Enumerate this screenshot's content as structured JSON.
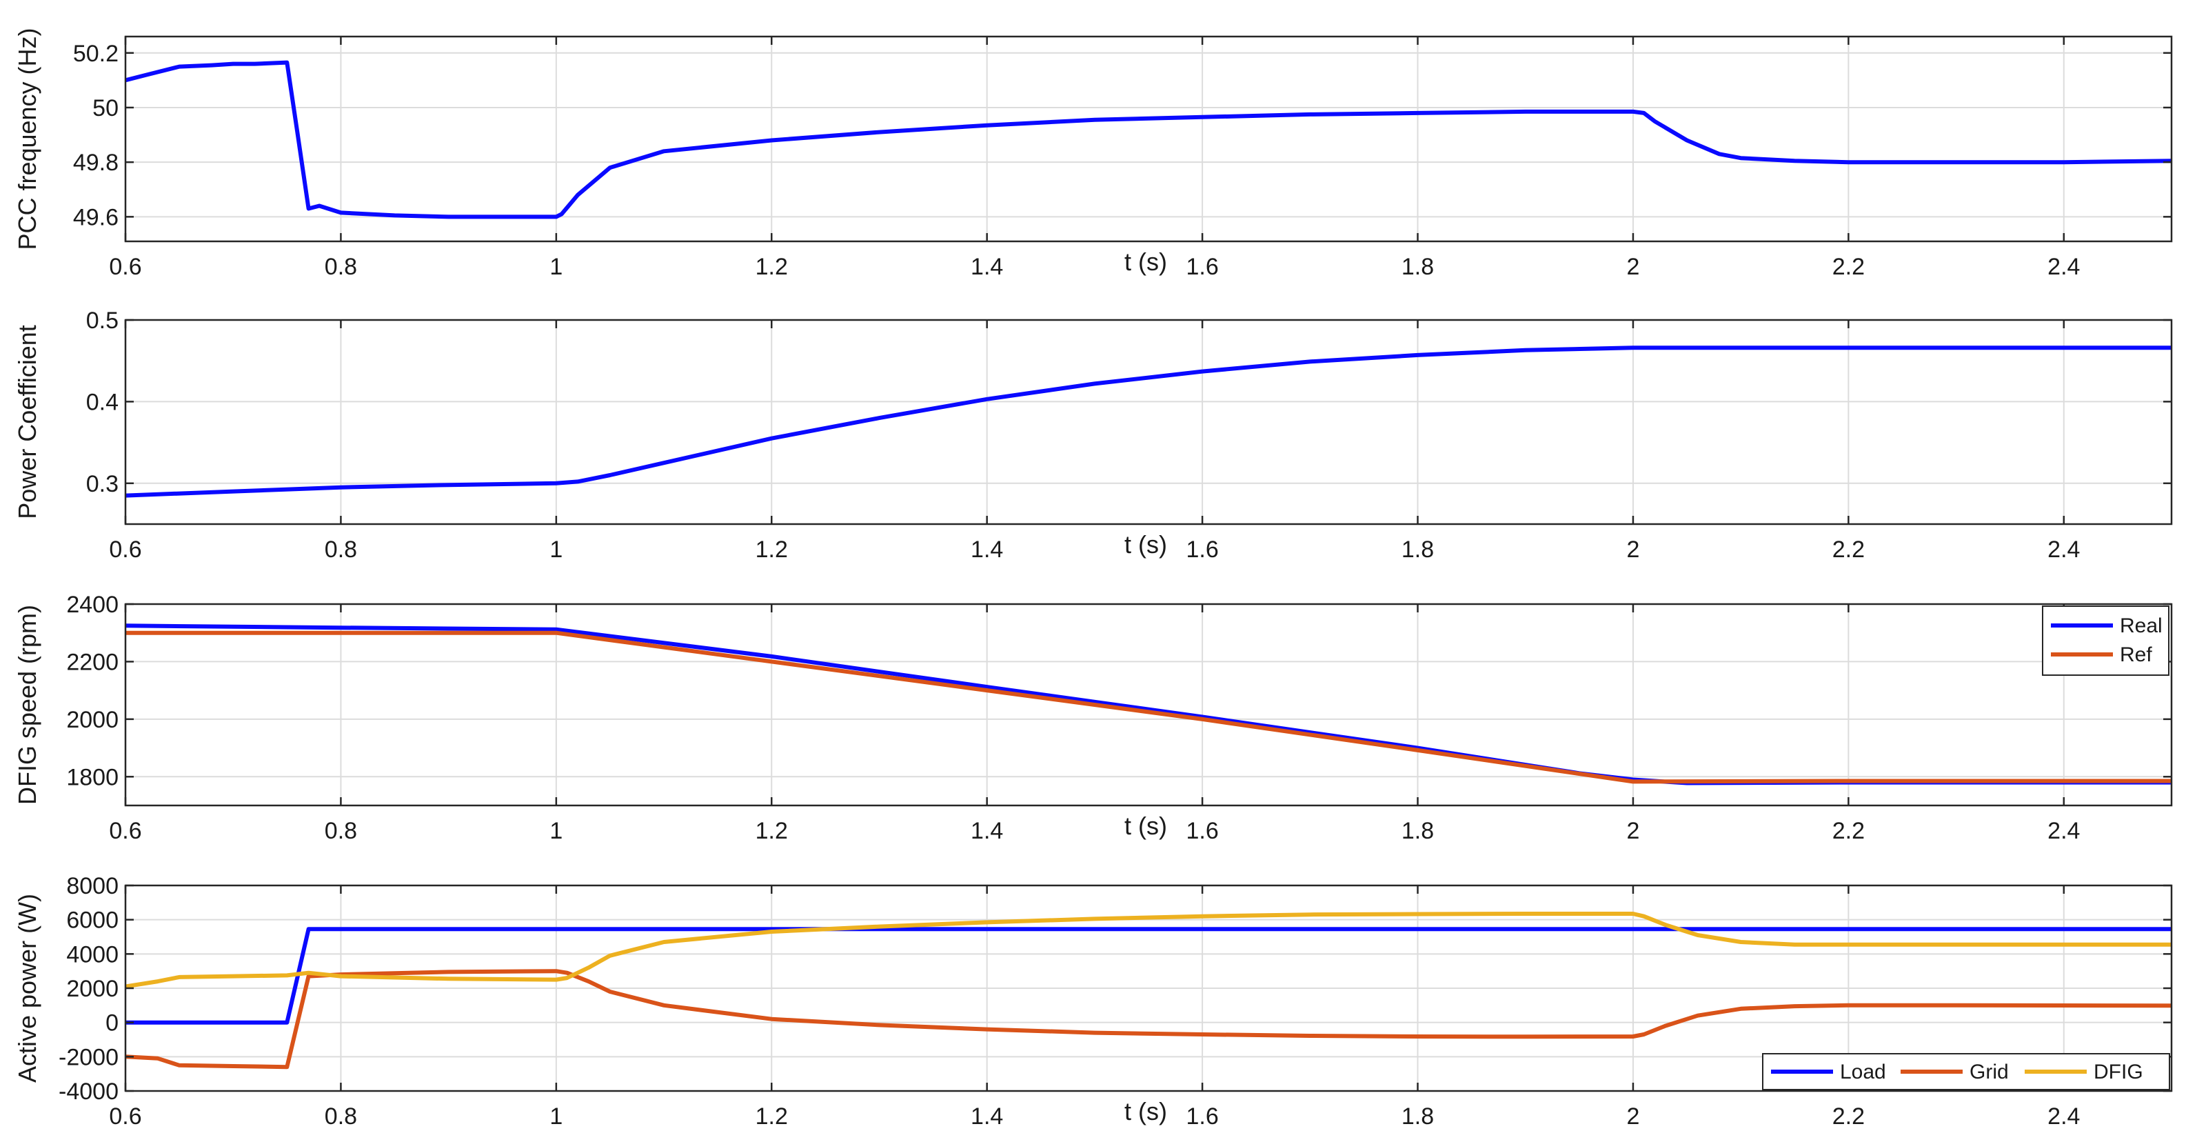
{
  "chart_data": [
    {
      "type": "line",
      "ylabel": "PCC frequency (Hz)",
      "xlabel": "t (s)",
      "xlim": [
        0.6,
        2.5
      ],
      "ylim": [
        49.51,
        50.26
      ],
      "xticks": [
        0.6,
        0.8,
        1,
        1.2,
        1.4,
        1.6,
        1.8,
        2,
        2.2,
        2.4
      ],
      "yticks": [
        49.6,
        49.8,
        50,
        50.2
      ],
      "grid": true,
      "legend": null,
      "series": [
        {
          "color": "#0a0aff",
          "x": [
            0.6,
            0.62,
            0.65,
            0.68,
            0.7,
            0.72,
            0.75,
            0.76,
            0.77,
            0.78,
            0.8,
            0.85,
            0.9,
            0.95,
            1.0,
            1.005,
            1.02,
            1.05,
            1.1,
            1.2,
            1.3,
            1.4,
            1.5,
            1.6,
            1.7,
            1.8,
            1.9,
            2.0,
            2.01,
            2.02,
            2.05,
            2.08,
            2.1,
            2.15,
            2.2,
            2.3,
            2.4,
            2.5
          ],
          "y": [
            50.1,
            50.12,
            50.15,
            50.155,
            50.16,
            50.16,
            50.165,
            49.9,
            49.63,
            49.64,
            49.615,
            49.605,
            49.6,
            49.6,
            49.6,
            49.61,
            49.68,
            49.78,
            49.84,
            49.88,
            49.91,
            49.935,
            49.955,
            49.965,
            49.975,
            49.98,
            49.985,
            49.985,
            49.98,
            49.95,
            49.88,
            49.83,
            49.815,
            49.805,
            49.8,
            49.8,
            49.8,
            49.805
          ]
        }
      ]
    },
    {
      "type": "line",
      "ylabel": "Power Coefficient",
      "xlabel": "t (s)",
      "xlim": [
        0.6,
        2.5
      ],
      "ylim": [
        0.25,
        0.5
      ],
      "xticks": [
        0.6,
        0.8,
        1,
        1.2,
        1.4,
        1.6,
        1.8,
        2,
        2.2,
        2.4
      ],
      "yticks": [
        0.3,
        0.4,
        0.5
      ],
      "grid": true,
      "legend": null,
      "series": [
        {
          "color": "#0a0aff",
          "x": [
            0.6,
            0.7,
            0.8,
            0.9,
            1.0,
            1.02,
            1.05,
            1.1,
            1.2,
            1.3,
            1.4,
            1.5,
            1.6,
            1.7,
            1.8,
            1.9,
            2.0,
            2.1,
            2.2,
            2.3,
            2.4,
            2.5
          ],
          "y": [
            0.285,
            0.29,
            0.295,
            0.298,
            0.3,
            0.302,
            0.31,
            0.325,
            0.355,
            0.38,
            0.403,
            0.422,
            0.437,
            0.449,
            0.457,
            0.463,
            0.466,
            0.466,
            0.466,
            0.466,
            0.466,
            0.466
          ]
        }
      ]
    },
    {
      "type": "line",
      "ylabel": "DFIG speed (rpm)",
      "xlabel": "t (s)",
      "xlim": [
        0.6,
        2.5
      ],
      "ylim": [
        1700,
        2400
      ],
      "xticks": [
        0.6,
        0.8,
        1,
        1.2,
        1.4,
        1.6,
        1.8,
        2,
        2.2,
        2.4
      ],
      "yticks": [
        1800,
        2000,
        2200,
        2400
      ],
      "grid": true,
      "legend": "top-right",
      "series": [
        {
          "name": "Real",
          "color": "#0a0aff",
          "x": [
            0.6,
            0.8,
            1.0,
            1.2,
            1.4,
            1.6,
            1.8,
            1.95,
            2.0,
            2.05,
            2.2,
            2.5
          ],
          "y": [
            2325,
            2318,
            2312,
            2218,
            2112,
            2008,
            1900,
            1812,
            1790,
            1778,
            1780,
            1780
          ]
        },
        {
          "name": "Ref",
          "color": "#d95319",
          "x": [
            0.6,
            0.8,
            1.0,
            1.2,
            1.4,
            1.6,
            1.8,
            2.0,
            2.2,
            2.5
          ],
          "y": [
            2300,
            2300,
            2300,
            2200,
            2100,
            2000,
            1892,
            1783,
            1785,
            1785
          ]
        }
      ]
    },
    {
      "type": "line",
      "ylabel": "Active power (W)",
      "xlabel": "t (s)",
      "xlim": [
        0.6,
        2.5
      ],
      "ylim": [
        -4000,
        8000
      ],
      "xticks": [
        0.6,
        0.8,
        1,
        1.2,
        1.4,
        1.6,
        1.8,
        2,
        2.2,
        2.4
      ],
      "yticks": [
        -4000,
        -2000,
        0,
        2000,
        4000,
        6000,
        8000
      ],
      "grid": true,
      "legend": "bottom-right",
      "series": [
        {
          "name": "Load",
          "color": "#0a0aff",
          "x": [
            0.6,
            0.75,
            0.77,
            1.0,
            1.5,
            2.0,
            2.5
          ],
          "y": [
            0,
            0,
            5450,
            5450,
            5450,
            5450,
            5450
          ]
        },
        {
          "name": "Grid",
          "color": "#d95319",
          "x": [
            0.6,
            0.63,
            0.65,
            0.7,
            0.75,
            0.77,
            0.8,
            0.9,
            1.0,
            1.01,
            1.03,
            1.05,
            1.1,
            1.2,
            1.3,
            1.4,
            1.5,
            1.6,
            1.7,
            1.8,
            1.9,
            2.0,
            2.01,
            2.03,
            2.06,
            2.1,
            2.15,
            2.2,
            2.3,
            2.5
          ],
          "y": [
            -2000,
            -2100,
            -2500,
            -2550,
            -2600,
            2700,
            2800,
            2950,
            3000,
            2900,
            2400,
            1800,
            1000,
            200,
            -150,
            -400,
            -600,
            -700,
            -780,
            -820,
            -830,
            -820,
            -700,
            -200,
            400,
            800,
            950,
            1000,
            1000,
            980
          ]
        },
        {
          "name": "DFIG",
          "color": "#edb120",
          "x": [
            0.6,
            0.63,
            0.65,
            0.7,
            0.75,
            0.77,
            0.8,
            0.9,
            1.0,
            1.01,
            1.03,
            1.05,
            1.1,
            1.2,
            1.3,
            1.4,
            1.5,
            1.6,
            1.7,
            1.8,
            1.9,
            2.0,
            2.01,
            2.03,
            2.06,
            2.1,
            2.15,
            2.2,
            2.3,
            2.5
          ],
          "y": [
            2100,
            2400,
            2650,
            2700,
            2750,
            2900,
            2700,
            2550,
            2500,
            2600,
            3200,
            3900,
            4700,
            5300,
            5600,
            5850,
            6050,
            6200,
            6300,
            6330,
            6350,
            6350,
            6200,
            5700,
            5100,
            4700,
            4550,
            4550,
            4550,
            4550
          ]
        }
      ]
    }
  ]
}
